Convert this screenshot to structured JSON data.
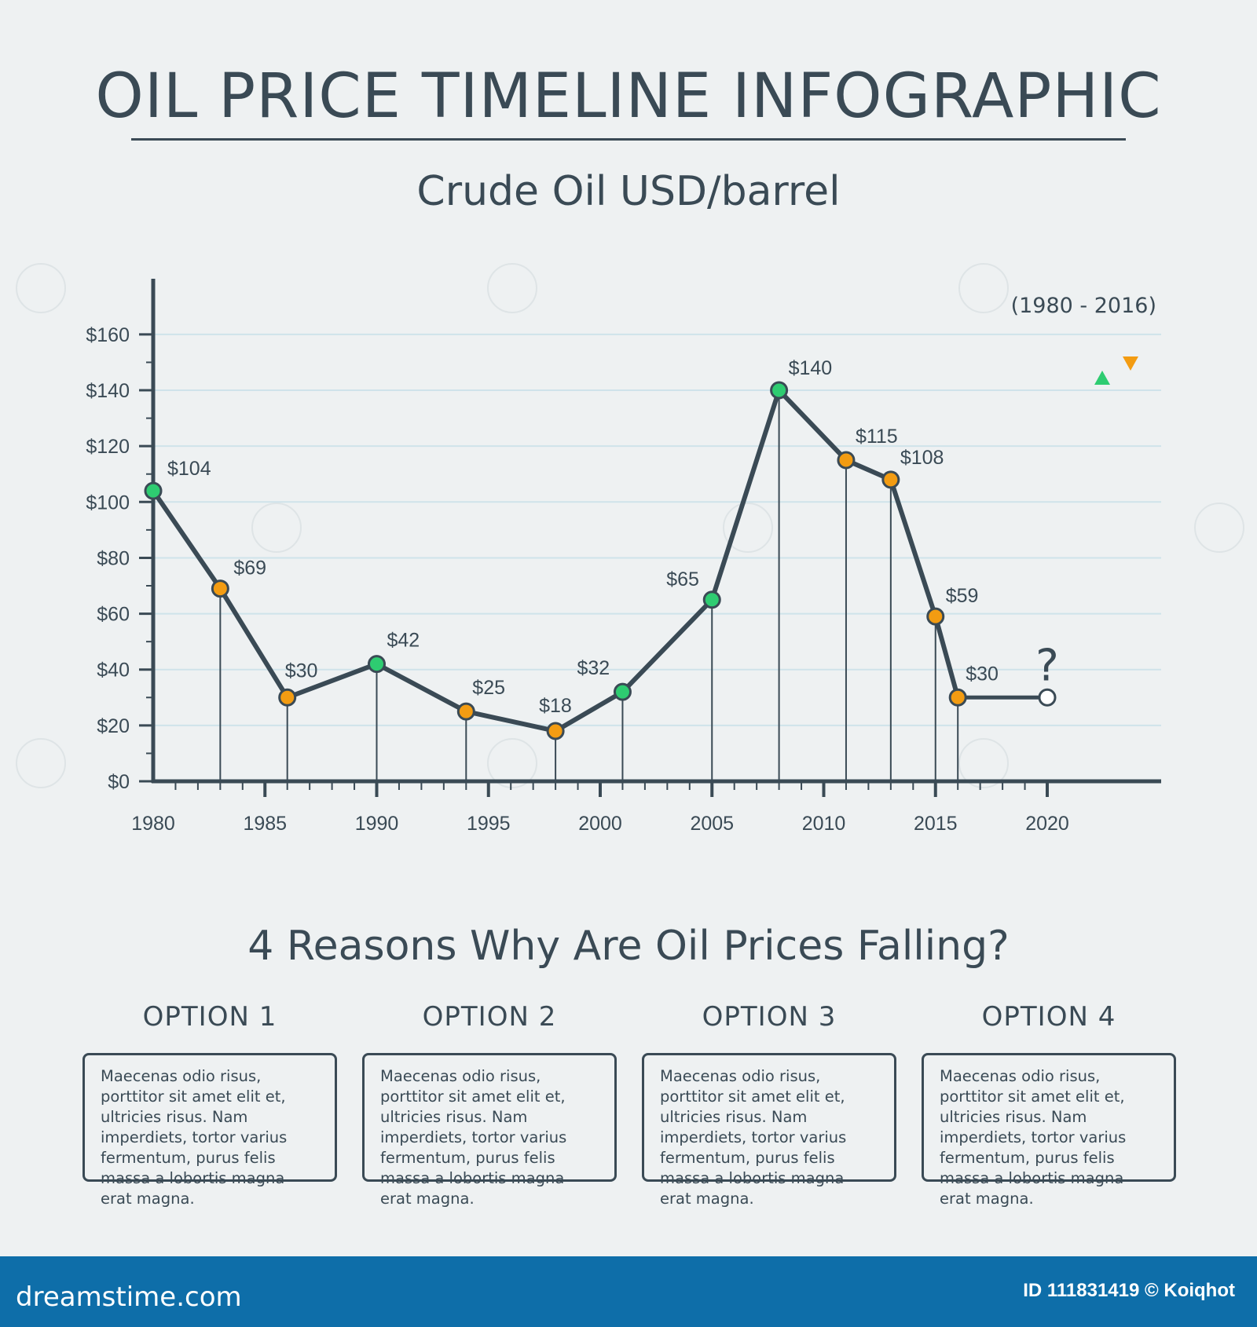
{
  "title": "OIL PRICE TIMELINE INFOGRAPHIC",
  "subtitle": "Crude Oil USD/barrel",
  "date_range": "(1980 - 2016)",
  "legend": {
    "up_color": "#2ecc71",
    "down_color": "#f39c12",
    "up_icon": "triangle-up-icon",
    "down_icon": "triangle-down-icon"
  },
  "colors": {
    "line": "#3a4a55",
    "grid": "#cfe3ea",
    "rise": "#2ecc71",
    "fall": "#f39c12",
    "footer": "#0e6ea9"
  },
  "chart_data": {
    "type": "line",
    "title": "Crude Oil USD/barrel",
    "xlabel": "",
    "ylabel": "",
    "x_ticks": [
      "1980",
      "1985",
      "1990",
      "1995",
      "2000",
      "2005",
      "2010",
      "2015",
      "2020"
    ],
    "y_ticks": [
      "$0",
      "$20",
      "$40",
      "$60",
      "$80",
      "$100",
      "$120",
      "$140",
      "$160"
    ],
    "xlim": [
      1980,
      2025
    ],
    "ylim": [
      0,
      180
    ],
    "grid": true,
    "points": [
      {
        "x": 1980,
        "y": 104,
        "label": "$104",
        "trend": "up"
      },
      {
        "x": 1983,
        "y": 69,
        "label": "$69",
        "trend": "down"
      },
      {
        "x": 1986,
        "y": 30,
        "label": "$30",
        "trend": "down"
      },
      {
        "x": 1990,
        "y": 42,
        "label": "$42",
        "trend": "up"
      },
      {
        "x": 1994,
        "y": 25,
        "label": "$25",
        "trend": "down"
      },
      {
        "x": 1998,
        "y": 18,
        "label": "$18",
        "trend": "down"
      },
      {
        "x": 2001,
        "y": 32,
        "label": "$32",
        "trend": "up"
      },
      {
        "x": 2005,
        "y": 65,
        "label": "$65",
        "trend": "up"
      },
      {
        "x": 2008,
        "y": 140,
        "label": "$140",
        "trend": "up"
      },
      {
        "x": 2011,
        "y": 115,
        "label": "$115",
        "trend": "down"
      },
      {
        "x": 2013,
        "y": 108,
        "label": "$108",
        "trend": "down"
      },
      {
        "x": 2015,
        "y": 59,
        "label": "$59",
        "trend": "down"
      },
      {
        "x": 2016,
        "y": 30,
        "label": "$30",
        "trend": "down"
      }
    ],
    "projection": {
      "x": 2020,
      "y": 30,
      "label": "?"
    }
  },
  "reasons": {
    "title": "4 Reasons Why Are Oil Prices Falling?",
    "options": [
      {
        "label": "OPTION 1",
        "text": "Maecenas odio risus, porttitor sit amet elit et, ultricies risus. Nam imperdiets, tortor varius fermentum, purus felis massa a lobortis magna erat magna."
      },
      {
        "label": "OPTION 2",
        "text": "Maecenas odio risus, porttitor sit amet elit et, ultricies risus. Nam imperdiets, tortor varius fermentum, purus felis massa a lobortis magna erat magna."
      },
      {
        "label": "OPTION 3",
        "text": "Maecenas odio risus, porttitor sit amet elit et, ultricies risus. Nam imperdiets, tortor varius fermentum, purus felis massa a lobortis magna erat magna."
      },
      {
        "label": "OPTION 4",
        "text": "Maecenas odio risus, porttitor sit amet elit et, ultricies risus. Nam imperdiets, tortor varius fermentum, purus felis massa a lobortis magna erat magna."
      }
    ]
  },
  "footer": {
    "logo": "dreamstime.com",
    "id_text": "ID 111831419 © Koiqhot"
  }
}
